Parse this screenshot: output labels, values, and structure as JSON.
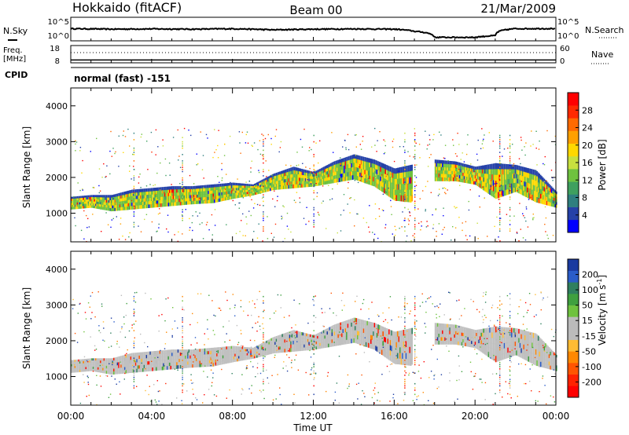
{
  "header": {
    "station": "Hokkaido (fitACF)",
    "beam": "Beam 00",
    "date": "21/Mar/2009"
  },
  "strip_labels": {
    "nsky": "N.Sky",
    "nsearch": "N.Search",
    "freq_line1": "Freq.",
    "freq_line2": "[MHz]",
    "nave": "Nave",
    "cpid": "CPID",
    "mode": "normal (fast) -151",
    "nsky_ticks": [
      "10^5",
      "10^0"
    ],
    "nsearch_ticks": [
      "10^5",
      "10^0"
    ],
    "freq_ticks": [
      "18",
      "8"
    ],
    "nave_ticks": [
      "60",
      "0"
    ]
  },
  "colors": {
    "power": [
      "#0000ff",
      "#2541a8",
      "#2f7f7f",
      "#3fa05f",
      "#6fc23f",
      "#c8e03f",
      "#ffd800",
      "#ffa000",
      "#ff6a00",
      "#ff2a00",
      "#ff0000"
    ],
    "velocity": [
      "#1a3aa0",
      "#2a5cc8",
      "#2f7f5f",
      "#3fa03f",
      "#6fc23f",
      "#bbbbbb",
      "#bbbbbb",
      "#ffbb33",
      "#ff8800",
      "#ff5500",
      "#ff2200",
      "#ff0000"
    ],
    "power_echo_main": "#6fc23f",
    "power_echo_dense": "#ffd800",
    "power_echo_edge": "#2541a8",
    "velocity_echo_main": "#c0c0c0"
  },
  "chart_data": [
    {
      "type": "line",
      "name": "N.Sky / N.Search strip",
      "ylabel": "N.Sky",
      "y2label": "N.Search",
      "yscale": "log",
      "ylim": [
        1,
        100000
      ],
      "ticks": [
        "10^5",
        "10^0"
      ],
      "x": [
        0,
        2,
        4,
        6,
        8,
        10,
        12,
        14,
        16,
        17,
        18,
        20,
        21,
        22,
        24
      ],
      "values": [
        400,
        300,
        350,
        300,
        380,
        200,
        300,
        350,
        300,
        90,
        3,
        3,
        8,
        400,
        420
      ]
    },
    {
      "type": "line",
      "name": "Freq / Nave strip",
      "ylabel": "Freq. [MHz]",
      "y2label": "Nave",
      "ylim_freq": [
        8,
        18
      ],
      "ylim_nave": [
        0,
        60
      ],
      "freq_ticks": [
        "18",
        "8"
      ],
      "nave_ticks": [
        "60",
        "0"
      ],
      "series": [
        {
          "name": "Freq",
          "x": [
            0,
            24
          ],
          "values": [
            10,
            10
          ]
        },
        {
          "name": "Nave",
          "x": [
            0,
            24
          ],
          "values": [
            30,
            30
          ]
        }
      ]
    },
    {
      "type": "heatmap",
      "name": "Power",
      "xlabel": "",
      "ylabel": "Slant Range [km]",
      "xlim": [
        0,
        24
      ],
      "ylim": [
        200,
        4500
      ],
      "x_ticks": [
        "00:00",
        "04:00",
        "08:00",
        "12:00",
        "16:00",
        "20:00",
        "00:00"
      ],
      "y_ticks": [
        1000,
        2000,
        3000,
        4000
      ],
      "colorbar_label": "Power [dB]",
      "colorbar_ticks": [
        4,
        8,
        12,
        16,
        20,
        24,
        28
      ],
      "echo_band": {
        "x": [
          0,
          1,
          2,
          3,
          4,
          5,
          6,
          7,
          8,
          9,
          10,
          11,
          12,
          13,
          14,
          15,
          16,
          16.8,
          18,
          19,
          20,
          21,
          22,
          23,
          24
        ],
        "lower_km": [
          1100,
          1150,
          1050,
          1100,
          1150,
          1200,
          1250,
          1280,
          1400,
          1500,
          1650,
          1700,
          1750,
          1850,
          1950,
          1750,
          1350,
          1300,
          1900,
          1900,
          1800,
          1400,
          1600,
          1300,
          1150
        ],
        "upper_km": [
          1450,
          1500,
          1500,
          1650,
          1700,
          1750,
          1750,
          1800,
          1850,
          1800,
          2100,
          2300,
          2150,
          2450,
          2650,
          2500,
          2250,
          2350,
          2500,
          2450,
          2300,
          2400,
          2350,
          2200,
          1600
        ]
      }
    },
    {
      "type": "heatmap",
      "name": "Velocity",
      "xlabel": "Time UT",
      "ylabel": "Slant Range [km]",
      "xlim": [
        0,
        24
      ],
      "ylim": [
        200,
        4500
      ],
      "x_ticks": [
        "00:00",
        "04:00",
        "08:00",
        "12:00",
        "16:00",
        "20:00",
        "00:00"
      ],
      "y_ticks": [
        1000,
        2000,
        3000,
        4000
      ],
      "colorbar_label": "Velocity [m s^-1]",
      "colorbar_ticks": [
        200,
        100,
        50,
        15,
        -15,
        -50,
        -100,
        -200
      ]
    }
  ]
}
